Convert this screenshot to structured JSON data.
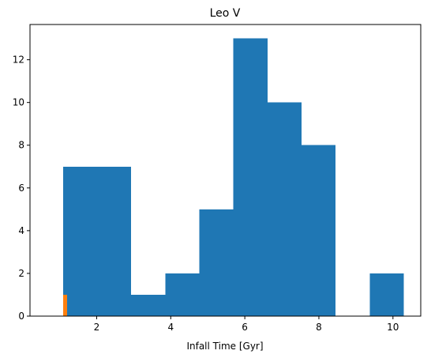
{
  "chart_data": {
    "type": "bar",
    "title": "Leo V",
    "xlabel": "Infall Time [Gyr]",
    "ylabel": "",
    "xlim": [
      0.2,
      10.75
    ],
    "ylim": [
      0,
      13.65
    ],
    "xticks": [
      2,
      4,
      6,
      8,
      10
    ],
    "yticks": [
      0,
      2,
      4,
      6,
      8,
      10,
      12
    ],
    "grid": false,
    "series": [
      {
        "color": "#1f77b4",
        "bins": [
          {
            "x0": 1.09,
            "x1": 2.01,
            "value": 7
          },
          {
            "x0": 2.01,
            "x1": 2.93,
            "value": 7
          },
          {
            "x0": 2.93,
            "x1": 3.85,
            "value": 1
          },
          {
            "x0": 3.85,
            "x1": 4.77,
            "value": 2
          },
          {
            "x0": 4.77,
            "x1": 5.69,
            "value": 5
          },
          {
            "x0": 5.69,
            "x1": 6.61,
            "value": 13
          },
          {
            "x0": 6.61,
            "x1": 7.53,
            "value": 10
          },
          {
            "x0": 7.53,
            "x1": 8.45,
            "value": 8
          },
          {
            "x0": 8.45,
            "x1": 9.37,
            "value": 0
          },
          {
            "x0": 9.37,
            "x1": 10.29,
            "value": 2
          }
        ]
      },
      {
        "color": "#ff7f0e",
        "bins": [
          {
            "x0": 1.09,
            "x1": 1.2,
            "value": 1
          }
        ]
      }
    ]
  }
}
